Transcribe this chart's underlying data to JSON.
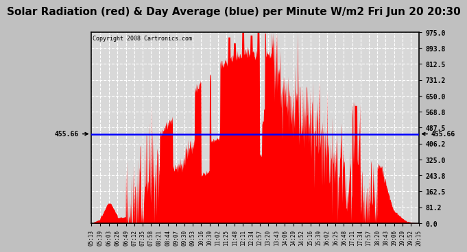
{
  "title": "Solar Radiation (red) & Day Average (blue) per Minute W/m2 Fri Jun 20 20:30",
  "copyright": "Copyright 2008 Cartronics.com",
  "avg_value": 455.66,
  "ymax": 975.0,
  "ymin": 0.0,
  "yticks": [
    0.0,
    81.2,
    162.5,
    243.8,
    325.0,
    406.2,
    487.5,
    568.8,
    650.0,
    731.2,
    812.5,
    893.8,
    975.0
  ],
  "xtick_labels": [
    "05:13",
    "05:39",
    "06:03",
    "06:26",
    "06:49",
    "07:12",
    "07:35",
    "07:58",
    "08:21",
    "08:44",
    "09:07",
    "09:30",
    "09:53",
    "10:16",
    "10:39",
    "11:02",
    "11:25",
    "11:48",
    "12:11",
    "12:34",
    "12:57",
    "13:20",
    "13:43",
    "14:06",
    "14:29",
    "14:52",
    "15:16",
    "15:39",
    "16:02",
    "16:25",
    "16:48",
    "17:11",
    "17:34",
    "17:57",
    "18:20",
    "18:43",
    "19:06",
    "19:29",
    "19:52",
    "20:15"
  ],
  "fill_color": "#FF0000",
  "line_color": "#0000FF",
  "background_color": "#D8D8D8",
  "grid_color": "#FFFFFF",
  "title_fontsize": 11,
  "avg_label": "455.66",
  "fig_bg": "#C0C0C0"
}
